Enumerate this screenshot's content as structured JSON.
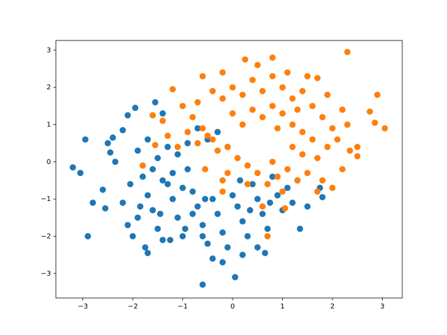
{
  "chart_data": {
    "type": "scatter",
    "xlim": [
      -3.54,
      3.4
    ],
    "ylim": [
      -3.66,
      3.26
    ],
    "xticks": [
      {
        "value": -3,
        "label": "−3"
      },
      {
        "value": -2,
        "label": "−2"
      },
      {
        "value": -1,
        "label": "−1"
      },
      0,
      1,
      2,
      3
    ],
    "yticks": [
      {
        "value": -3,
        "label": "−3"
      },
      {
        "value": -2,
        "label": "−2"
      },
      {
        "value": -1,
        "label": "−1"
      },
      0,
      1,
      2,
      3
    ],
    "series": [
      {
        "color": "#1f77b4",
        "x": [
          -3.2,
          -3.05,
          -2.95,
          -2.9,
          -2.8,
          -2.6,
          -2.55,
          -2.5,
          -2.4,
          -2.35,
          -2.45,
          -2.2,
          -2.1,
          -1.95,
          -1.75,
          -1.7,
          -0.6,
          0.05,
          0.65,
          1.35,
          1.8,
          1.75,
          -1.55,
          -1.4,
          -2.2,
          -2.1,
          -2.0,
          -1.9,
          -1.8,
          -1.7,
          -1.6,
          -1.5,
          -1.4,
          -1.3,
          -1.2,
          -1.1,
          -1.0,
          -0.9,
          -0.8,
          -0.7,
          -0.6,
          -0.5,
          -0.4,
          -0.3,
          -0.2,
          -0.1,
          0.0,
          0.1,
          0.2,
          0.3,
          0.4,
          0.5,
          0.6,
          0.7,
          0.8,
          0.9,
          1.0,
          1.1,
          1.2,
          1.3,
          -1.9,
          -1.7,
          -1.5,
          -1.3,
          -1.1,
          -0.9,
          -0.7,
          -0.5,
          -0.3,
          -0.1,
          -1.6,
          -1.4,
          -1.2,
          -1.0,
          -0.8,
          -0.6,
          -0.4,
          -0.2,
          0.2,
          0.5,
          -1.25,
          -1.45,
          -1.85,
          -2.05,
          -0.95,
          0.15,
          0.35,
          -0.55,
          0.75,
          1.5
        ],
        "y": [
          -0.15,
          -0.3,
          0.6,
          -2.0,
          -1.1,
          -0.75,
          -1.25,
          0.5,
          0.65,
          0,
          0.25,
          0.85,
          1.25,
          1.45,
          -2.3,
          -2.45,
          -3.3,
          -3.1,
          -2.45,
          -1.8,
          -0.95,
          -0.7,
          1.6,
          1.3,
          -1.1,
          -1.7,
          -2.0,
          -1.5,
          -0.4,
          -0.9,
          -1.3,
          -1.8,
          -2.1,
          -0.6,
          -1.0,
          -1.5,
          -2.0,
          -0.2,
          -0.8,
          -1.2,
          -1.7,
          -2.2,
          -1.0,
          -1.4,
          -1.9,
          -2.3,
          -0.9,
          -1.2,
          -1.6,
          -2.0,
          -0.6,
          -1.0,
          -1.4,
          -1.8,
          -0.4,
          -0.9,
          -1.3,
          -0.7,
          -1.1,
          -0.5,
          0.3,
          0.6,
          0.1,
          0.4,
          0.2,
          0.5,
          0.9,
          0.6,
          0.8,
          0.4,
          -0.2,
          -0.5,
          -0.3,
          -0.7,
          -1.4,
          -2.0,
          -2.6,
          -2.7,
          -2.5,
          -2.3,
          -2.1,
          -1.4,
          -1.2,
          -0.6,
          -1.8,
          -0.5,
          -1.3,
          -1.0,
          -1.1,
          -1.2
        ]
      },
      {
        "color": "#ff7f0e",
        "x": [
          2.3,
          0.8,
          0.25,
          3.05,
          2.9,
          2.75,
          2.85,
          0.7,
          1.05,
          2.2,
          2.0,
          -1.6,
          -1.55,
          -1.8,
          -0.6,
          -1.2,
          -0.2,
          1.7,
          2.2,
          2.35,
          2.5,
          -0.55,
          -0.2,
          -1.0,
          -0.8,
          -0.6,
          -0.4,
          -0.2,
          0.0,
          0.2,
          0.4,
          0.6,
          0.8,
          1.0,
          1.2,
          1.4,
          1.6,
          1.8,
          2.0,
          1.9,
          1.7,
          1.5,
          1.3,
          1.1,
          0.9,
          0.7,
          0.5,
          0.3,
          0.1,
          -0.1,
          -0.3,
          -0.5,
          -0.7,
          -0.9,
          -1.1,
          -1.3,
          0.0,
          0.2,
          0.4,
          0.6,
          0.8,
          1.0,
          1.2,
          1.4,
          1.6,
          1.4,
          1.2,
          1.0,
          0.6,
          0.3,
          -0.1,
          1.8,
          2.1,
          2.3,
          2.5,
          1.9,
          1.5,
          1.1,
          0.5,
          -0.4,
          -0.7,
          -1.4,
          1.3,
          0.9,
          1.7,
          0.8,
          -0.2
        ],
        "y": [
          2.95,
          2.8,
          2.75,
          0.9,
          1.8,
          1.35,
          1.05,
          -2.0,
          -1.25,
          -0.2,
          -0.7,
          1.25,
          0.45,
          -0.1,
          2.3,
          1.95,
          2.4,
          2.25,
          1.4,
          0.3,
          0.15,
          -0.2,
          -0.8,
          1.5,
          1.2,
          0.9,
          0.6,
          1.7,
          2.0,
          1.8,
          2.2,
          1.9,
          2.3,
          2.0,
          1.7,
          1.9,
          1.5,
          1.2,
          0.9,
          0.4,
          0.1,
          -0.3,
          -0.5,
          -0.2,
          -0.4,
          -0.6,
          -0.3,
          -0.1,
          0.1,
          0.4,
          0.3,
          0.7,
          0.5,
          0.8,
          0.4,
          0.7,
          1.3,
          1.0,
          1.4,
          1.2,
          1.5,
          1.3,
          1.0,
          0.8,
          0.6,
          0.2,
          0.4,
          -0.8,
          -1.2,
          -0.6,
          -0.3,
          -0.5,
          0.6,
          1.0,
          0.4,
          1.8,
          2.3,
          2.4,
          2.6,
          1.9,
          1.6,
          1.1,
          1.4,
          0.9,
          -0.8,
          0.0,
          -0.5
        ]
      }
    ]
  }
}
